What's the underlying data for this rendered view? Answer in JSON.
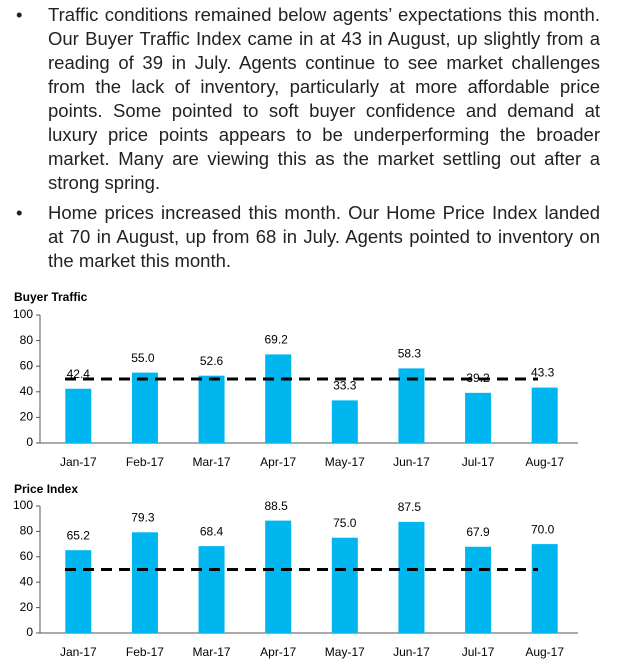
{
  "bullets": [
    "Traffic conditions remained below agents’ expectations this month. Our Buyer Traffic Index came in at 43 in August, up slightly from a reading of 39 in July. Agents continue to see market challenges from the lack of inventory, particularly at more affordable price points. Some pointed to soft buyer confidence and demand at luxury price points appears to be underperforming the broader market. Many are viewing this as the market settling out after a strong spring.",
    "Home prices increased this month. Our Home Price Index landed at 70 in August, up from 68 in July. Agents pointed to inventory on the market this month."
  ],
  "chart_data": [
    {
      "type": "bar",
      "title": "Buyer Traffic",
      "categories": [
        "Jan-17",
        "Feb-17",
        "Mar-17",
        "Apr-17",
        "May-17",
        "Jun-17",
        "Jul-17",
        "Aug-17"
      ],
      "values": [
        42.4,
        55.0,
        52.6,
        69.2,
        33.3,
        58.3,
        39.2,
        43.3
      ],
      "value_labels": [
        "42.4",
        "55.0",
        "52.6",
        "69.2",
        "33.3",
        "58.3",
        "39.2",
        "43.3"
      ],
      "color": "#00b6ef",
      "reference_line": 50,
      "ylim": [
        0,
        100
      ],
      "yticks": [
        0,
        20,
        40,
        60,
        80,
        100
      ]
    },
    {
      "type": "bar",
      "title": "Price Index",
      "categories": [
        "Jan-17",
        "Feb-17",
        "Mar-17",
        "Apr-17",
        "May-17",
        "Jun-17",
        "Jul-17",
        "Aug-17"
      ],
      "values": [
        65.2,
        79.3,
        68.4,
        88.5,
        75.0,
        87.5,
        67.9,
        70.0
      ],
      "value_labels": [
        "65.2",
        "79.3",
        "68.4",
        "88.5",
        "75.0",
        "87.5",
        "67.9",
        "70.0"
      ],
      "color": "#00b6ef",
      "reference_line": 50,
      "ylim": [
        0,
        100
      ],
      "yticks": [
        0,
        20,
        40,
        60,
        80,
        100
      ]
    }
  ]
}
